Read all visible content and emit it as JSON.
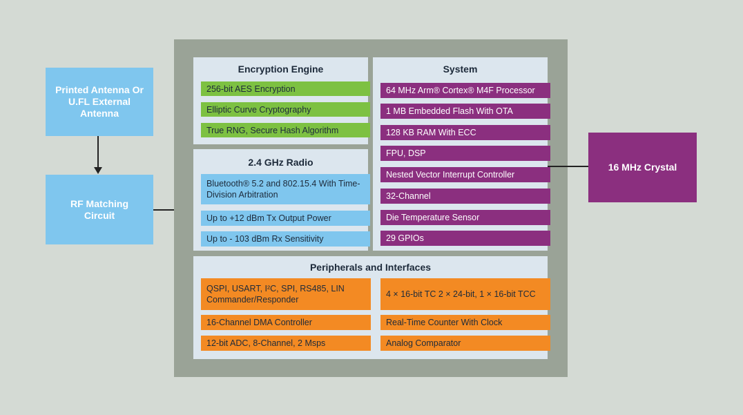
{
  "external": {
    "antenna": "Printed Antenna Or U.FL External Antenna",
    "rf": "RF Matching Circuit",
    "crystal": "16 MHz Crystal"
  },
  "encryption": {
    "title": "Encryption Engine",
    "items": [
      "256-bit AES Encryption",
      "Elliptic Curve Cryptography",
      "True RNG, Secure Hash Algorithm"
    ]
  },
  "radio": {
    "title": "2.4 GHz Radio",
    "items": [
      "Bluetooth® 5.2 and 802.15.4 With Time-Division Arbitration",
      "Up to +12 dBm Tx Output Power",
      "Up to - 103 dBm Rx Sensitivity"
    ]
  },
  "system": {
    "title": "System",
    "items": [
      "64 MHz Arm® Cortex® M4F Processor",
      "1 MB Embedded Flash With OTA",
      "128 KB RAM With ECC",
      "FPU, DSP",
      "Nested Vector Interrupt Controller",
      "32-Channel",
      "Die Temperature Sensor",
      "29 GPIOs"
    ]
  },
  "peripherals": {
    "title": "Peripherals and Interfaces",
    "left": [
      "QSPI, USART, I²C, SPI, RS485, LIN Commander/Responder",
      "16-Channel DMA Controller",
      "12-bit ADC, 8-Channel, 2 Msps"
    ],
    "right": [
      "4 × 16-bit TC 2 × 24-bit, 1 × 16-bit TCC",
      "Real-Time Counter With Clock",
      "Analog Comparator"
    ]
  },
  "colors": {
    "green": "#7dc142",
    "blue": "#7fc6ee",
    "purple": "#8b2f7f",
    "orange": "#f38a23"
  }
}
